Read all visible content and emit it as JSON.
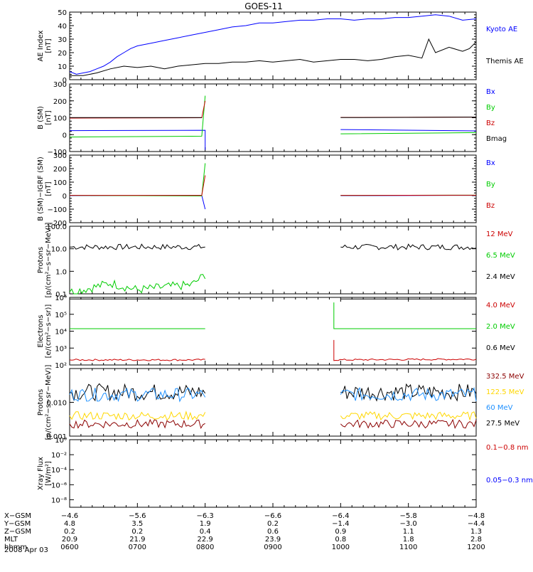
{
  "title": "GOES-11",
  "date_label": "2008 Apr 03",
  "chart_data": [
    {
      "type": "line",
      "id": "ae",
      "ylabel_lines": [
        "AE Index",
        "[nT]"
      ],
      "ylim": [
        0,
        50
      ],
      "yticks": [
        "0",
        "10",
        "20",
        "30",
        "40",
        "50"
      ],
      "ytick_values": [
        0,
        10,
        20,
        30,
        40,
        50
      ],
      "series": [
        {
          "name": "Kyoto AE",
          "color": "#0000ff",
          "x": [
            0,
            0.1,
            0.2,
            0.3,
            0.4,
            0.5,
            0.6,
            0.7,
            0.8,
            0.9,
            1.0,
            1.2,
            1.4,
            1.6,
            1.8,
            2.0,
            2.2,
            2.4,
            2.6,
            2.8,
            3.0,
            3.2,
            3.4,
            3.6,
            3.8,
            4.0,
            4.2,
            4.4,
            4.6,
            4.8,
            5.0,
            5.2,
            5.4,
            5.6,
            5.8,
            6.0
          ],
          "y": [
            6,
            4,
            5,
            6,
            8,
            10,
            13,
            17,
            20,
            23,
            25,
            27,
            29,
            31,
            33,
            35,
            37,
            39,
            40,
            42,
            42,
            43,
            44,
            44,
            45,
            45,
            44,
            45,
            45,
            46,
            46,
            47,
            48,
            47,
            44,
            45
          ]
        },
        {
          "name": "Themis AE",
          "color": "#000000",
          "x": [
            0,
            0.2,
            0.4,
            0.6,
            0.8,
            1.0,
            1.2,
            1.4,
            1.6,
            1.8,
            2.0,
            2.2,
            2.4,
            2.6,
            2.8,
            3.0,
            3.2,
            3.4,
            3.6,
            3.8,
            4.0,
            4.2,
            4.4,
            4.6,
            4.8,
            5.0,
            5.2,
            5.3,
            5.4,
            5.6,
            5.8,
            5.9,
            6.0
          ],
          "y": [
            3,
            3,
            5,
            8,
            10,
            9,
            10,
            8,
            10,
            11,
            12,
            12,
            13,
            13,
            14,
            13,
            14,
            15,
            13,
            14,
            15,
            15,
            14,
            15,
            17,
            18,
            16,
            30,
            20,
            24,
            21,
            23,
            28
          ]
        }
      ]
    },
    {
      "type": "line",
      "id": "bsm",
      "ylabel_lines": [
        "B (SM)",
        "[nT]"
      ],
      "ylim": [
        -100,
        300
      ],
      "yticks": [
        "−100",
        "0",
        "100",
        "200",
        "300"
      ],
      "ytick_values": [
        -100,
        0,
        100,
        200,
        300
      ],
      "legend": [
        "Bx",
        "By",
        "Bz",
        "Bmag"
      ],
      "legend_colors": [
        "#0000ff",
        "#00cc00",
        "#cc0000",
        "#000000"
      ],
      "series": [
        {
          "name": "Bx",
          "color": "#0000ff",
          "x": [
            0,
            2.0,
            2.0,
            2.05,
            4.0,
            6.0
          ],
          "y": [
            24,
            26,
            -90,
            null,
            30,
            22
          ]
        },
        {
          "name": "By",
          "color": "#00cc00",
          "x": [
            0,
            1.95,
            2.0,
            2.05,
            4.0,
            6.0
          ],
          "y": [
            -14,
            -9,
            230,
            null,
            5,
            12
          ]
        },
        {
          "name": "Bz",
          "color": "#cc0000",
          "x": [
            0,
            1.95,
            2.0,
            2.05,
            4.0,
            6.0
          ],
          "y": [
            98,
            100,
            200,
            null,
            102,
            104
          ]
        },
        {
          "name": "Bmag",
          "color": "#000000",
          "x": [
            0,
            1.95,
            2.05,
            4.0,
            6.0
          ],
          "y": [
            101,
            101,
            null,
            101,
            104
          ]
        }
      ]
    },
    {
      "type": "line",
      "id": "bdiff",
      "ylabel_lines": [
        "B (SM)−IGRF (SM)",
        "[nT]"
      ],
      "ylim": [
        -200,
        300
      ],
      "yticks": [
        "−200",
        "−100",
        "0",
        "100",
        "200",
        "300"
      ],
      "ytick_values": [
        -200,
        -100,
        0,
        100,
        200,
        300
      ],
      "legend": [
        "Bx",
        "By",
        "Bz"
      ],
      "legend_colors": [
        "#0000ff",
        "#00cc00",
        "#cc0000"
      ],
      "series": [
        {
          "name": "Bx",
          "color": "#0000ff",
          "x": [
            0,
            1.95,
            2.0,
            2.05,
            4.0,
            6.0
          ],
          "y": [
            0,
            2,
            -100,
            null,
            0,
            2
          ]
        },
        {
          "name": "By",
          "color": "#00cc00",
          "x": [
            0,
            1.95,
            2.0,
            2.05,
            4.0,
            6.0
          ],
          "y": [
            2,
            -2,
            240,
            null,
            2,
            3
          ]
        },
        {
          "name": "Bz",
          "color": "#cc0000",
          "x": [
            0,
            1.95,
            2.0,
            2.05,
            4.0,
            6.0
          ],
          "y": [
            2,
            2,
            150,
            null,
            2,
            3
          ]
        }
      ]
    },
    {
      "type": "line",
      "id": "protons1",
      "scale": "log",
      "ylabel_lines": [
        "Protons",
        "[p/(cm²−s−sr−MeV)]"
      ],
      "ylim": [
        0.1,
        100
      ],
      "yticks": [
        "0.1",
        "1.0",
        "10.0",
        "100.0"
      ],
      "ytick_values": [
        0.1,
        1,
        10,
        100
      ],
      "legend": [
        "12 MeV",
        "6.5 MeV",
        "2.4 MeV"
      ],
      "legend_colors": [
        "#cc0000",
        "#00cc00",
        "#000000"
      ],
      "series": [
        {
          "name": "2.4 MeV",
          "color": "#000000",
          "x": [
            0,
            2.0,
            2.05,
            4.0,
            6.0
          ],
          "y": [
            12,
            12,
            null,
            12,
            12
          ],
          "noise": 0.25
        },
        {
          "name": "6.5 MeV",
          "color": "#00cc00",
          "x": [
            0,
            0.3,
            0.6,
            1.0,
            1.4,
            1.8,
            2.0
          ],
          "y": [
            0.12,
            0.18,
            0.3,
            0.15,
            0.2,
            0.25,
            0.7
          ],
          "noise": 0.4
        }
      ]
    },
    {
      "type": "line",
      "id": "electrons",
      "scale": "log",
      "ylabel_lines": [
        "Electrons",
        "[e/(cm²−s−sr)]"
      ],
      "ylim": [
        100,
        1000000
      ],
      "yticks": [
        "10²",
        "10³",
        "10⁴",
        "10⁵",
        "10⁶"
      ],
      "ytick_values": [
        100,
        1000,
        10000,
        100000,
        1000000
      ],
      "legend": [
        "4.0 MeV",
        "2.0 MeV",
        "0.6 MeV"
      ],
      "legend_colors": [
        "#cc0000",
        "#00cc00",
        "#000000"
      ],
      "series": [
        {
          "name": "0.6 MeV",
          "color": "#000000",
          "x": [
            0,
            2.0,
            2.05,
            4.0,
            6.0
          ],
          "y": [
            800000,
            800000,
            null,
            800000,
            800000
          ]
        },
        {
          "name": "2.0 MeV",
          "color": "#00cc00",
          "x": [
            0,
            2.0,
            2.05,
            3.9,
            3.9,
            6.0
          ],
          "y": [
            14000,
            14000,
            null,
            500000,
            14000,
            14000
          ]
        },
        {
          "name": "4.0 MeV",
          "color": "#cc0000",
          "x": [
            0,
            2.0,
            2.05,
            3.9,
            3.9,
            6.0
          ],
          "y": [
            200,
            200,
            null,
            3000,
            200,
            220
          ],
          "noise": 0.1
        }
      ]
    },
    {
      "type": "line",
      "id": "protons2",
      "scale": "log",
      "ylabel_lines": [
        "Protons",
        "[p/(cm²−s−sr−MeV)]"
      ],
      "ylim": [
        0.001,
        0.1
      ],
      "yticks": [
        "0.001",
        "0.010"
      ],
      "ytick_values": [
        0.001,
        0.01
      ],
      "legend": [
        "332.5 MeV",
        "122.5 MeV",
        "60 MeV",
        "27.5 MeV"
      ],
      "legend_colors": [
        "#8b0000",
        "#ffd700",
        "#1e90ff",
        "#000000"
      ],
      "series": [
        {
          "name": "27.5 MeV",
          "color": "#000000",
          "x": [
            0,
            2.0,
            2.05,
            4.0,
            6.0
          ],
          "y": [
            0.02,
            0.02,
            null,
            0.02,
            0.02
          ],
          "noise": 0.5
        },
        {
          "name": "60 MeV",
          "color": "#1e90ff",
          "x": [
            0,
            2.0,
            2.05,
            4.0,
            6.0
          ],
          "y": [
            0.017,
            0.017,
            null,
            0.017,
            0.017
          ],
          "noise": 0.4
        },
        {
          "name": "122.5 MeV",
          "color": "#ffd700",
          "x": [
            0,
            2.0,
            2.05,
            4.0,
            6.0
          ],
          "y": [
            0.004,
            0.004,
            null,
            0.004,
            0.004
          ],
          "noise": 0.25
        },
        {
          "name": "332.5 MeV",
          "color": "#8b0000",
          "x": [
            0,
            2.0,
            2.05,
            4.0,
            6.0
          ],
          "y": [
            0.0023,
            0.0023,
            null,
            0.0023,
            0.0023
          ],
          "noise": 0.25
        }
      ]
    },
    {
      "type": "line",
      "id": "xray",
      "scale": "log",
      "ylabel_lines": [
        "Xray Flux",
        "[W/m²]"
      ],
      "ylim": [
        1e-09,
        1
      ],
      "yticks": [
        "10⁻⁸",
        "10⁻⁶",
        "10⁻⁴",
        "10⁻²",
        "10⁰"
      ],
      "ytick_values": [
        1e-08,
        1e-06,
        0.0001,
        0.01,
        1
      ],
      "legend": [
        "0.1−0.8 nm",
        "0.05−0.3 nm"
      ],
      "legend_colors": [
        "#cc0000",
        "#0000ff"
      ],
      "series": []
    }
  ],
  "ephemeris": {
    "labels": [
      "X−GSM",
      "Y−GSM",
      "Z−GSM",
      "MLT",
      "hhmm"
    ],
    "columns": [
      [
        "−4.6",
        "4.8",
        "0.2",
        "20.9",
        "0600"
      ],
      [
        "−5.6",
        "3.5",
        "0.2",
        "21.9",
        "0700"
      ],
      [
        "−6.3",
        "1.9",
        "0.4",
        "22.9",
        "0800"
      ],
      [
        "−6.6",
        "0.2",
        "0.6",
        "23.9",
        "0900"
      ],
      [
        "−6.4",
        "−1.4",
        "0.9",
        "0.8",
        "1000"
      ],
      [
        "−5.8",
        "−3.0",
        "1.1",
        "1.8",
        "1100"
      ],
      [
        "−4.8",
        "−4.4",
        "1.3",
        "2.8",
        "1200"
      ]
    ]
  },
  "ae_legend": [
    "Kyoto AE",
    "Themis AE"
  ],
  "ae_legend_colors": [
    "#0000ff",
    "#000000"
  ]
}
